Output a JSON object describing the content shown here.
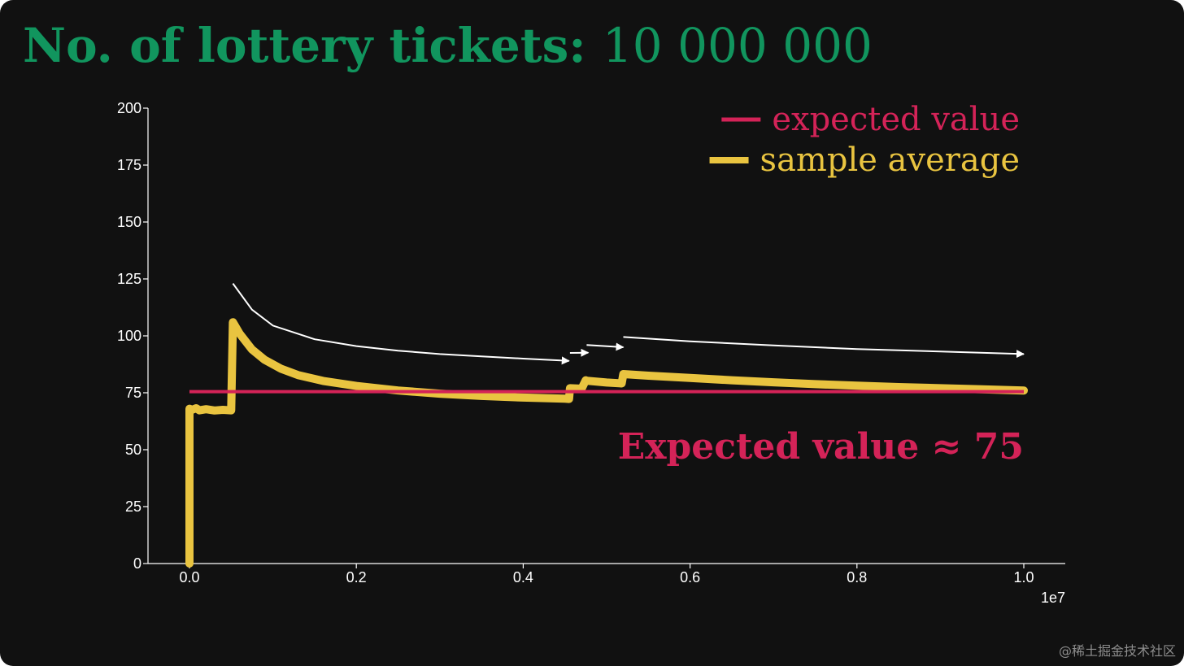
{
  "title": {
    "label": "No. of lottery tickets:",
    "value": "10 000 000"
  },
  "colors": {
    "background": "#111111",
    "title": "#11955e",
    "expected": "#d42358",
    "sample": "#e9c440",
    "axis": "#ffffff",
    "arrows": "#ffffff"
  },
  "watermark": "@稀土掘金技术社区",
  "chart_data": {
    "type": "line",
    "title": "",
    "xlabel": "",
    "ylabel": "",
    "x_offset_label": "1e7",
    "xlim": [
      -0.024,
      1.0
    ],
    "ylim": [
      0,
      200
    ],
    "xticks": [
      0.0,
      0.2,
      0.4,
      0.6,
      0.8,
      1.0
    ],
    "xtick_labels": [
      "0.0",
      "0.2",
      "0.4",
      "0.6",
      "0.8",
      "1.0"
    ],
    "yticks": [
      0,
      25,
      50,
      75,
      100,
      125,
      150,
      175,
      200
    ],
    "ytick_labels": [
      "0",
      "25",
      "50",
      "75",
      "100",
      "125",
      "150",
      "175",
      "200"
    ],
    "grid": false,
    "legend_position": "top-right",
    "legend": [
      {
        "label": "expected value",
        "series": "expected"
      },
      {
        "label": "sample average",
        "series": "sample"
      }
    ],
    "series": [
      {
        "key": "expected",
        "name": "expected value",
        "color": "#d42358",
        "x": [
          0.0,
          1.0
        ],
        "y": [
          75.5,
          75.5
        ]
      },
      {
        "key": "sample",
        "name": "sample average",
        "color": "#e9c440",
        "x": [
          0.0,
          0.0,
          0.003,
          0.008,
          0.012,
          0.02,
          0.03,
          0.04,
          0.05,
          0.052,
          0.06,
          0.075,
          0.09,
          0.11,
          0.13,
          0.16,
          0.2,
          0.25,
          0.3,
          0.35,
          0.4,
          0.45,
          0.455,
          0.456,
          0.47,
          0.475,
          0.476,
          0.5,
          0.518,
          0.52,
          0.55,
          0.6,
          0.65,
          0.7,
          0.75,
          0.8,
          0.85,
          0.9,
          0.95,
          1.0
        ],
        "y": [
          0,
          68,
          67.5,
          68.2,
          67.3,
          67.8,
          67.2,
          67.5,
          67.3,
          106,
          101,
          94,
          89.5,
          85.5,
          82.8,
          80.2,
          78,
          76,
          74.6,
          73.6,
          72.9,
          72.4,
          72.3,
          77,
          76.8,
          80.5,
          80.3,
          79.5,
          79.1,
          83.2,
          82.5,
          81.5,
          80.5,
          79.6,
          78.8,
          78.1,
          77.5,
          77,
          76.5,
          76
        ]
      }
    ],
    "annotations": [
      {
        "type": "text",
        "text": "Expected value ≈ 75",
        "position": "right",
        "x": 1.0,
        "y": 46,
        "color": "#d42358"
      }
    ],
    "trend_arrows": [
      {
        "x": [
          0.052,
          0.075,
          0.1,
          0.15,
          0.2,
          0.25,
          0.3,
          0.35,
          0.4,
          0.455
        ],
        "y": [
          123,
          111.5,
          104.5,
          98.5,
          95.5,
          93.5,
          92,
          91,
          90,
          89
        ]
      },
      {
        "x": [
          0.456,
          0.478
        ],
        "y": [
          92.5,
          92.6
        ]
      },
      {
        "x": [
          0.476,
          0.52
        ],
        "y": [
          96,
          95
        ]
      },
      {
        "x": [
          0.52,
          0.6,
          0.7,
          0.8,
          0.9,
          1.0
        ],
        "y": [
          99.5,
          97.6,
          95.8,
          94.2,
          93.1,
          92
        ]
      }
    ]
  }
}
